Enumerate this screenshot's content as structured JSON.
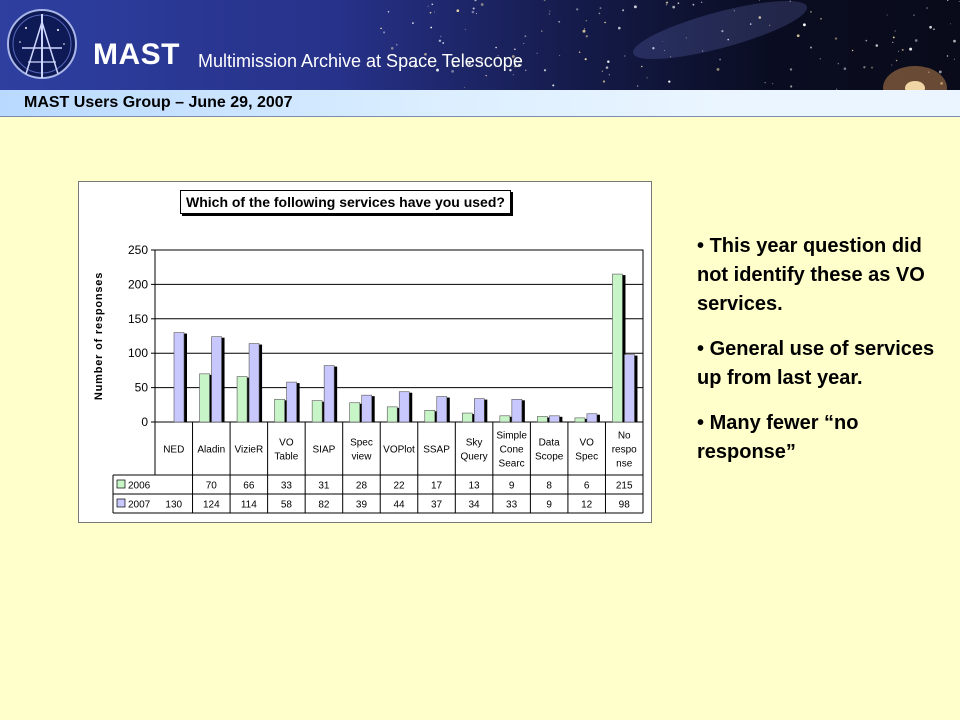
{
  "header": {
    "brand": "MAST",
    "subtitle": "Multimission Archive at Space Telescope",
    "colors": {
      "banner_blue": "#2e3fa0",
      "bar_light": "#dbeeff",
      "background": "#ffffcc"
    }
  },
  "subheader": {
    "title": "MAST Users Group – June 29, 2007"
  },
  "chart_data": {
    "type": "bar",
    "title": "Which of the following services have you used?",
    "ylabel": "Number of responses",
    "xlabel": "",
    "ylim": [
      0,
      250
    ],
    "yticks": [
      0,
      50,
      100,
      150,
      200,
      250
    ],
    "grid": true,
    "legend": "data-table",
    "categories": [
      [
        "NED"
      ],
      [
        "Aladin"
      ],
      [
        "VizieR"
      ],
      [
        "VO",
        "Table"
      ],
      [
        "SIAP"
      ],
      [
        "Spec",
        "view"
      ],
      [
        "VOPlot"
      ],
      [
        "SSAP"
      ],
      [
        "Sky",
        "Query"
      ],
      [
        "Simple",
        "Cone",
        "Searc"
      ],
      [
        "Data",
        "Scope"
      ],
      [
        "VO",
        "Spec"
      ],
      [
        "No",
        "respo",
        "nse"
      ]
    ],
    "series": [
      {
        "name": "2006",
        "color": "#c8f5c8",
        "values": [
          null,
          70,
          66,
          33,
          31,
          28,
          22,
          17,
          13,
          9,
          8,
          6,
          215
        ]
      },
      {
        "name": "2007",
        "color": "#c8c8ff",
        "values": [
          130,
          124,
          114,
          58,
          82,
          39,
          44,
          37,
          34,
          33,
          9,
          12,
          98
        ]
      }
    ]
  },
  "notes": [
    "This year question did not identify these as VO services.",
    "General use of services up from last year.",
    "Many fewer “no response”"
  ]
}
